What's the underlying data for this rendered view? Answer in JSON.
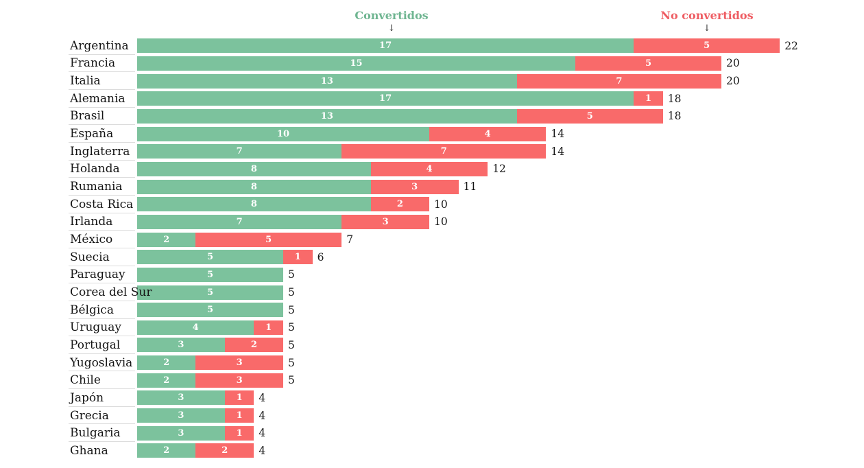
{
  "legend": {
    "converted_label": "Convertidos",
    "not_converted_label": "No convertidos",
    "arrow_glyph": "↓"
  },
  "colors": {
    "converted": "#7cc29d",
    "not_converted": "#f96a6a",
    "converted_text": "#6fb591",
    "not_converted_text": "#ee5c62",
    "label_text": "#151515",
    "divider": "#dcdcdc",
    "bar_value_text": "#ffffff"
  },
  "chart_data": {
    "type": "bar",
    "orientation": "horizontal",
    "stacked": true,
    "grid": false,
    "legend_position": "top",
    "xlim": [
      0,
      22
    ],
    "value_labels": "inside-center",
    "total_labels": "right-of-bar",
    "categories": [
      "Argentina",
      "Francia",
      "Italia",
      "Alemania",
      "Brasil",
      "España",
      "Inglaterra",
      "Holanda",
      "Rumania",
      "Costa Rica",
      "Irlanda",
      "México",
      "Suecia",
      "Paraguay",
      "Corea del Sur",
      "Bélgica",
      "Uruguay",
      "Portugal",
      "Yugoslavia",
      "Chile",
      "Japón",
      "Grecia",
      "Bulgaria",
      "Ghana"
    ],
    "series": [
      {
        "name": "Convertidos",
        "color": "#7cc29d",
        "values": [
          17,
          15,
          13,
          17,
          13,
          10,
          7,
          8,
          8,
          8,
          7,
          2,
          5,
          5,
          5,
          5,
          4,
          3,
          2,
          2,
          3,
          3,
          3,
          2
        ]
      },
      {
        "name": "No convertidos",
        "color": "#f96a6a",
        "values": [
          5,
          5,
          7,
          1,
          5,
          4,
          7,
          4,
          3,
          2,
          3,
          5,
          1,
          0,
          0,
          0,
          1,
          2,
          3,
          3,
          1,
          1,
          1,
          2
        ]
      }
    ],
    "totals": [
      22,
      20,
      20,
      18,
      18,
      14,
      14,
      12,
      11,
      10,
      10,
      7,
      6,
      5,
      5,
      5,
      5,
      5,
      5,
      5,
      4,
      4,
      4,
      4
    ]
  }
}
